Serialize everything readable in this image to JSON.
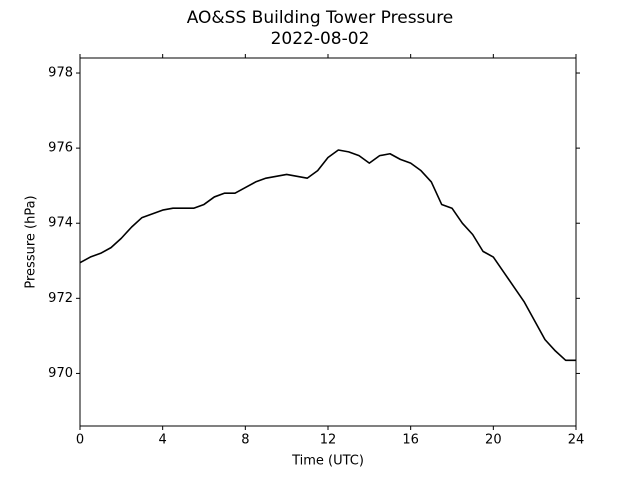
{
  "chart_data": {
    "type": "line",
    "title": "AO&SS Building Tower Pressure",
    "subtitle": "2022-08-02",
    "x_label": "Time (UTC)",
    "y_label": "Pressure (hPa)",
    "color": "#000000",
    "x": [
      0,
      0.5,
      1,
      1.5,
      2,
      2.5,
      3,
      3.5,
      4,
      4.5,
      5,
      5.5,
      6,
      6.5,
      7,
      7.5,
      8,
      8.5,
      9,
      9.5,
      10,
      10.5,
      11,
      11.5,
      12,
      12.5,
      13,
      13.5,
      14,
      14.5,
      15,
      15.5,
      16,
      16.5,
      17,
      17.5,
      18,
      18.5,
      19,
      19.5,
      20,
      20.5,
      21,
      21.5,
      22,
      22.5,
      23,
      23.5,
      24
    ],
    "values": [
      972.95,
      973.1,
      973.2,
      973.35,
      973.6,
      973.9,
      974.15,
      974.25,
      974.35,
      974.4,
      974.4,
      974.4,
      974.5,
      974.7,
      974.8,
      974.8,
      974.95,
      975.1,
      975.2,
      975.25,
      975.3,
      975.25,
      975.2,
      975.4,
      975.75,
      975.95,
      975.9,
      975.8,
      975.6,
      975.8,
      975.85,
      975.7,
      975.6,
      975.4,
      975.1,
      974.5,
      974.4,
      974.0,
      973.7,
      973.25,
      973.1,
      972.7,
      972.3,
      971.9,
      971.4,
      970.9,
      970.6,
      970.35,
      970.35
    ],
    "xlim": [
      0,
      24
    ],
    "xticks": [
      0,
      4,
      8,
      12,
      16,
      20,
      24
    ],
    "ylim": [
      968.6,
      978.4
    ],
    "yticks": [
      970,
      972,
      974,
      976,
      978
    ]
  }
}
